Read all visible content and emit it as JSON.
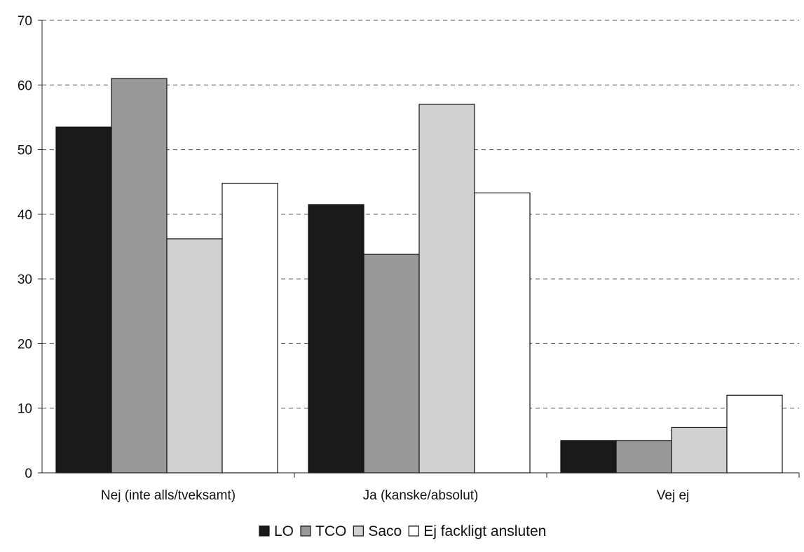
{
  "chart_data": {
    "type": "bar",
    "title": "",
    "xlabel": "",
    "ylabel": "",
    "ylim": [
      0,
      70
    ],
    "yticks": [
      0,
      10,
      20,
      30,
      40,
      50,
      60,
      70
    ],
    "grid": "horizontal-dashed",
    "legend_placement": "bottom-center",
    "categories": [
      "Nej (inte alls/tveksamt)",
      "Ja (kanske/absolut)",
      "Vej ej"
    ],
    "series": [
      {
        "name": "LO",
        "color": "#1a1a1a",
        "values": [
          53.5,
          41.5,
          5
        ]
      },
      {
        "name": "TCO",
        "color": "#999999",
        "values": [
          61,
          33.8,
          5
        ]
      },
      {
        "name": "Saco",
        "color": "#d0d0d0",
        "values": [
          36.2,
          57,
          7
        ]
      },
      {
        "name": "Ej fackligt ansluten",
        "color": "#ffffff",
        "values": [
          44.8,
          43.3,
          12
        ]
      }
    ]
  }
}
